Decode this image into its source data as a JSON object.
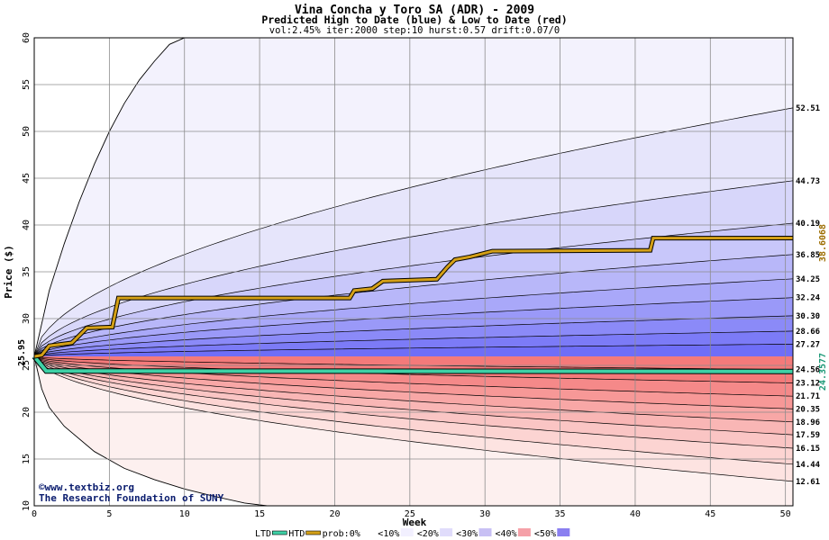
{
  "chart_data": {
    "type": "area",
    "title": "Vina Concha y Toro SA (ADR) - 2009",
    "subtitle": "Predicted High to Date (blue) &  Low to Date (red)",
    "params": "vol:2.45% iter:2000 step:10 hurst:0.57 drift:0.07/0",
    "xlabel": "Week",
    "ylabel": "Price ($)",
    "xlim": [
      0,
      50.5
    ],
    "ylim": [
      10,
      60
    ],
    "xticks": [
      0,
      5,
      10,
      15,
      20,
      25,
      30,
      35,
      40,
      45,
      50
    ],
    "yticks": [
      10,
      15,
      20,
      25,
      30,
      35,
      40,
      45,
      50,
      55,
      60
    ],
    "grid": true,
    "start_price": 25.95,
    "start_label": "25.95",
    "blue_band_levels": [
      52.51,
      44.73,
      40.19,
      36.85,
      34.25,
      32.24,
      30.3,
      28.66,
      27.27,
      24.56
    ],
    "red_band_levels": [
      23.12,
      21.71,
      20.35,
      18.96,
      17.59,
      16.15,
      14.44,
      12.61
    ],
    "right_labels": [
      "52.51",
      "44.73",
      "40.19",
      "36.85",
      "34.25",
      "32.24",
      "30.30",
      "28.66",
      "27.27",
      "24.56",
      "23.12",
      "21.71",
      "20.35",
      "18.96",
      "17.59",
      "16.15",
      "14.44",
      "12.61"
    ],
    "outer_high_envelope": [
      [
        0,
        25.95
      ],
      [
        1,
        33
      ],
      [
        2,
        38
      ],
      [
        3,
        42.5
      ],
      [
        4,
        46.5
      ],
      [
        5,
        50
      ],
      [
        6,
        53
      ],
      [
        7,
        55.5
      ],
      [
        8,
        57.5
      ],
      [
        9,
        59.3
      ],
      [
        10,
        60
      ],
      [
        12,
        60
      ]
    ],
    "outer_low_envelope": [
      [
        0,
        25.95
      ],
      [
        0.5,
        22.5
      ],
      [
        1,
        20.5
      ],
      [
        2,
        18.5
      ],
      [
        4,
        15.8
      ],
      [
        6,
        14
      ],
      [
        8,
        12.8
      ],
      [
        10,
        11.8
      ],
      [
        12,
        11
      ],
      [
        14,
        10.3
      ],
      [
        15.5,
        10
      ]
    ],
    "htd_line": {
      "name": "HTD",
      "label": "38.6068",
      "value": 38.6068,
      "color": "#d4a017",
      "points": [
        [
          0,
          25.95
        ],
        [
          0.5,
          26.1
        ],
        [
          1,
          27.1
        ],
        [
          2.5,
          27.4
        ],
        [
          3.5,
          29.0
        ],
        [
          5.2,
          29.1
        ],
        [
          5.6,
          32.2
        ],
        [
          21,
          32.2
        ],
        [
          21.3,
          33.0
        ],
        [
          22.5,
          33.2
        ],
        [
          23.2,
          34.0
        ],
        [
          26.8,
          34.2
        ],
        [
          27.5,
          35.5
        ],
        [
          28,
          36.3
        ],
        [
          29,
          36.6
        ],
        [
          30.5,
          37.2
        ],
        [
          41,
          37.3
        ],
        [
          41.2,
          38.6
        ],
        [
          50.5,
          38.6068
        ]
      ]
    },
    "ltd_line": {
      "name": "LTD",
      "label": "24.3577",
      "value": 24.3577,
      "color": "#3ed1a6",
      "points": [
        [
          0,
          25.95
        ],
        [
          0.8,
          24.4
        ],
        [
          50.5,
          24.3577
        ]
      ]
    },
    "legend": [
      "LTD",
      "HTD",
      "prob:0%",
      "<10%",
      "<20%",
      "<30%",
      "<40%",
      "<50%"
    ],
    "legend_colors": [
      "#3ed1a6",
      "#d4a017",
      "#ffffff",
      "#f2f0ff",
      "#e0dcfb",
      "#c8c0f4",
      "#f5a0a8",
      "#8a7ff0"
    ]
  },
  "watermark": {
    "line1": "©www.textbiz.org",
    "line2": "The Research Foundation of SUNY"
  },
  "colors": {
    "blue_outer": "#f3f2fd",
    "blue_inner": "#6f6ef7",
    "red_outer": "#fdf0ef",
    "red_inner": "#f47a7a",
    "grid": "#8c8c8c",
    "text": "#000000",
    "watermark": "#0a1c6e"
  }
}
